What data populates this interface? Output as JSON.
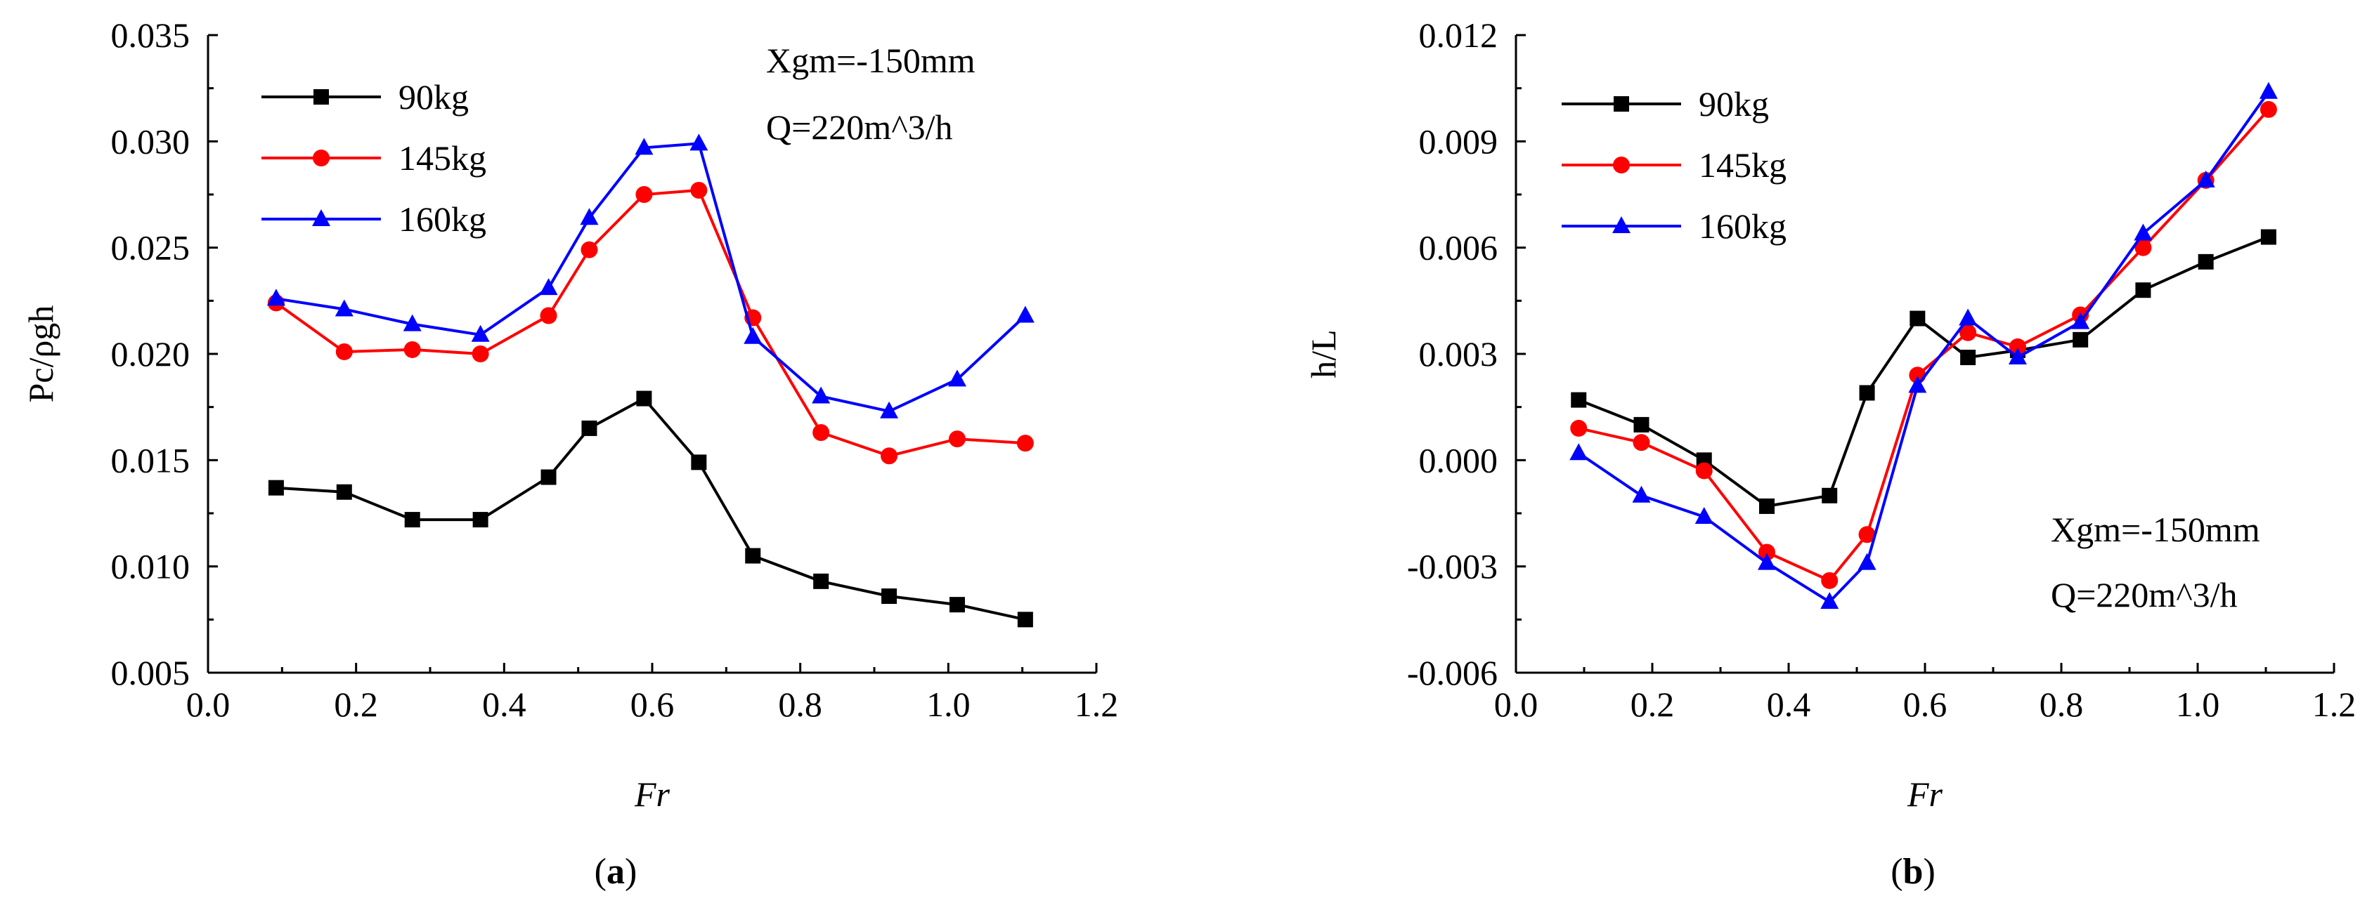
{
  "chart_data": [
    {
      "id": "a",
      "type": "line",
      "panel_label": "a",
      "xlabel": "Fr",
      "ylabel": "Pc/ρgh",
      "xlim": [
        0.0,
        1.2
      ],
      "ylim": [
        0.005,
        0.035
      ],
      "xticks": [
        "0.0",
        "0.2",
        "0.4",
        "0.6",
        "0.8",
        "1.0",
        "1.2"
      ],
      "yticks": [
        "0.005",
        "0.010",
        "0.015",
        "0.020",
        "0.025",
        "0.030",
        "0.035"
      ],
      "annotations": [
        "Xgm=-150mm",
        "Q=220m^3/h"
      ],
      "annotation_position": "top-right",
      "legend_position": "top-left",
      "x": [
        0.092,
        0.184,
        0.276,
        0.368,
        0.46,
        0.515,
        0.589,
        0.663,
        0.736,
        0.828,
        0.92,
        1.012,
        1.104
      ],
      "series": [
        {
          "name": "90kg",
          "color": "#000000",
          "marker": "square",
          "values": [
            0.0137,
            0.0135,
            0.0122,
            0.0122,
            0.0142,
            0.0165,
            0.0179,
            0.0149,
            0.0105,
            0.0093,
            0.0086,
            0.0082,
            0.0075
          ]
        },
        {
          "name": "145kg",
          "color": "#ff0000",
          "marker": "circle",
          "values": [
            0.0224,
            0.0201,
            0.0202,
            0.02,
            0.0218,
            0.0249,
            0.0275,
            0.0277,
            0.0217,
            0.0163,
            0.0152,
            0.016,
            0.0158
          ]
        },
        {
          "name": "160kg",
          "color": "#0000ff",
          "marker": "triangle",
          "values": [
            0.0226,
            0.0221,
            0.0214,
            0.0209,
            0.0231,
            0.0264,
            0.0297,
            0.0299,
            0.0208,
            0.018,
            0.0173,
            0.0188,
            0.0218
          ]
        }
      ]
    },
    {
      "id": "b",
      "type": "line",
      "panel_label": "b",
      "xlabel": "Fr",
      "ylabel": "h/L",
      "xlim": [
        0.0,
        1.2
      ],
      "ylim": [
        -0.006,
        0.012
      ],
      "xticks": [
        "0.0",
        "0.2",
        "0.4",
        "0.6",
        "0.8",
        "1.0",
        "1.2"
      ],
      "yticks": [
        "-0.006",
        "-0.003",
        "0.000",
        "0.003",
        "0.006",
        "0.009",
        "0.012"
      ],
      "annotations": [
        "Xgm=-150mm",
        "Q=220m^3/h"
      ],
      "annotation_position": "bottom-right",
      "legend_position": "top-left",
      "x": [
        0.092,
        0.184,
        0.276,
        0.368,
        0.46,
        0.515,
        0.589,
        0.663,
        0.736,
        0.828,
        0.92,
        1.012,
        1.104
      ],
      "series": [
        {
          "name": "90kg",
          "color": "#000000",
          "marker": "square",
          "values": [
            0.0017,
            0.001,
            0.0,
            -0.0013,
            -0.001,
            0.0019,
            0.004,
            0.0029,
            0.0031,
            0.0034,
            0.0048,
            0.0056,
            0.0063
          ]
        },
        {
          "name": "145kg",
          "color": "#ff0000",
          "marker": "circle",
          "values": [
            0.0009,
            0.0005,
            -0.0003,
            -0.0026,
            -0.0034,
            -0.0021,
            0.0024,
            0.0036,
            0.0032,
            0.0041,
            0.006,
            0.0079,
            0.0099
          ]
        },
        {
          "name": "160kg",
          "color": "#0000ff",
          "marker": "triangle",
          "values": [
            0.0002,
            -0.001,
            -0.0016,
            -0.0029,
            -0.004,
            -0.0029,
            0.0021,
            0.004,
            0.0029,
            0.0039,
            0.0064,
            0.0079,
            0.0104
          ]
        }
      ]
    }
  ]
}
